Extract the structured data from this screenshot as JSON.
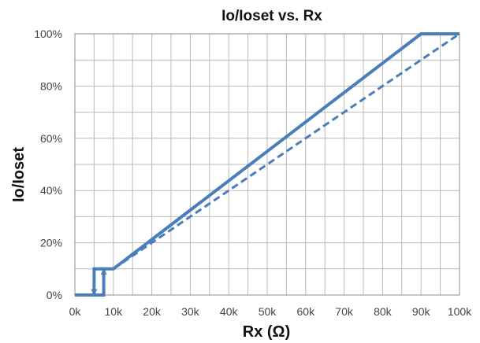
{
  "chart_data": {
    "type": "line",
    "title": "Io/Ioset vs. Rx",
    "xlabel": "Rx (Ω)",
    "ylabel": "Io/Ioset",
    "xlim": [
      0,
      100
    ],
    "ylim": [
      0,
      100
    ],
    "x_ticks": [
      0,
      10,
      20,
      30,
      40,
      50,
      60,
      70,
      80,
      90,
      100
    ],
    "x_tick_labels": [
      "0k",
      "10k",
      "20k",
      "30k",
      "40k",
      "50k",
      "60k",
      "70k",
      "80k",
      "90k",
      "100k"
    ],
    "y_ticks": [
      0,
      20,
      40,
      60,
      80,
      100
    ],
    "y_tick_labels": [
      "0%",
      "20%",
      "40%",
      "60%",
      "80%",
      "100%"
    ],
    "grid": true,
    "legend": "none",
    "color": "#4a7ebb",
    "series": [
      {
        "style": "solid",
        "points": [
          [
            0,
            0
          ],
          [
            7.5,
            0
          ],
          [
            7.5,
            10
          ],
          [
            10,
            10
          ],
          [
            90,
            100
          ],
          [
            100,
            100
          ]
        ]
      },
      {
        "style": "solid",
        "points": [
          [
            5,
            0
          ],
          [
            5,
            10
          ],
          [
            7.5,
            10
          ]
        ]
      },
      {
        "style": "dashed",
        "points": [
          [
            10,
            10
          ],
          [
            100,
            100
          ]
        ]
      }
    ],
    "arrows": [
      {
        "direction": "down",
        "x": 5,
        "y_from": 7,
        "y_to": 1
      },
      {
        "direction": "up",
        "x": 7.5,
        "y_from": 3,
        "y_to": 9
      }
    ]
  }
}
